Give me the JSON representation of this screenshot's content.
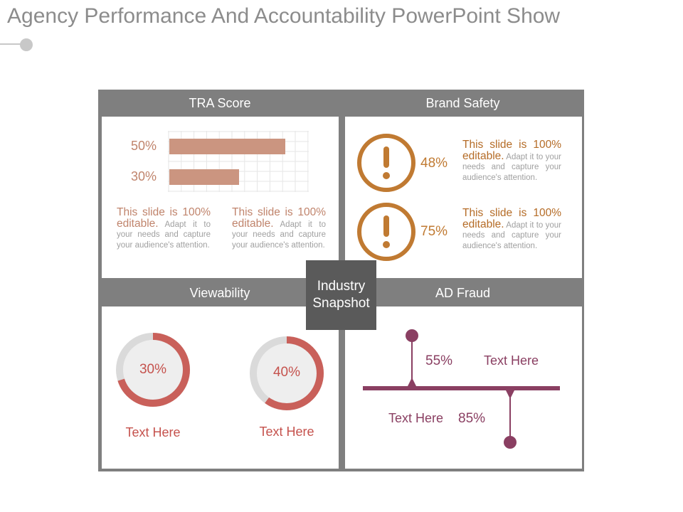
{
  "slide": {
    "title": "Agency Performance And Accountability PowerPoint Show"
  },
  "center_label": "Industry Snapshot",
  "tra_score": {
    "header": "TRA Score",
    "bars": [
      {
        "label": "50%",
        "value": 50
      },
      {
        "label": "30%",
        "value": 30
      }
    ],
    "texts": [
      {
        "lead": "This slide is 100% editable.",
        "body": "Adapt it to your needs and capture your audience's attention."
      },
      {
        "lead": "This slide is 100% editable.",
        "body": "Adapt it to your needs and capture your audience's attention."
      }
    ]
  },
  "brand_safety": {
    "header": "Brand Safety",
    "items": [
      {
        "value": "48%",
        "lead": "This slide is 100% editable.",
        "body": "Adapt it to your needs and capture your audience's attention."
      },
      {
        "value": "75%",
        "lead": "This slide is 100% editable.",
        "body": "Adapt it to your needs and capture your audience's attention."
      }
    ],
    "accent": "#c07a32"
  },
  "viewability": {
    "header": "Viewability",
    "donuts": [
      {
        "label": "30%",
        "value": 0.3,
        "caption": "Text Here"
      },
      {
        "label": "40%",
        "value": 0.4,
        "caption": "Text Here"
      }
    ],
    "accent": "#c9605a"
  },
  "ad_fraud": {
    "header": "AD Fraud",
    "upper": {
      "value": "55%",
      "text": "Text Here"
    },
    "lower": {
      "value": "85%",
      "text": "Text Here"
    },
    "accent": "#8a3f62"
  },
  "colors": {
    "header_bg": "#7f7f7f",
    "bar": "#cb9580",
    "center_box": "#5a5a5a"
  }
}
